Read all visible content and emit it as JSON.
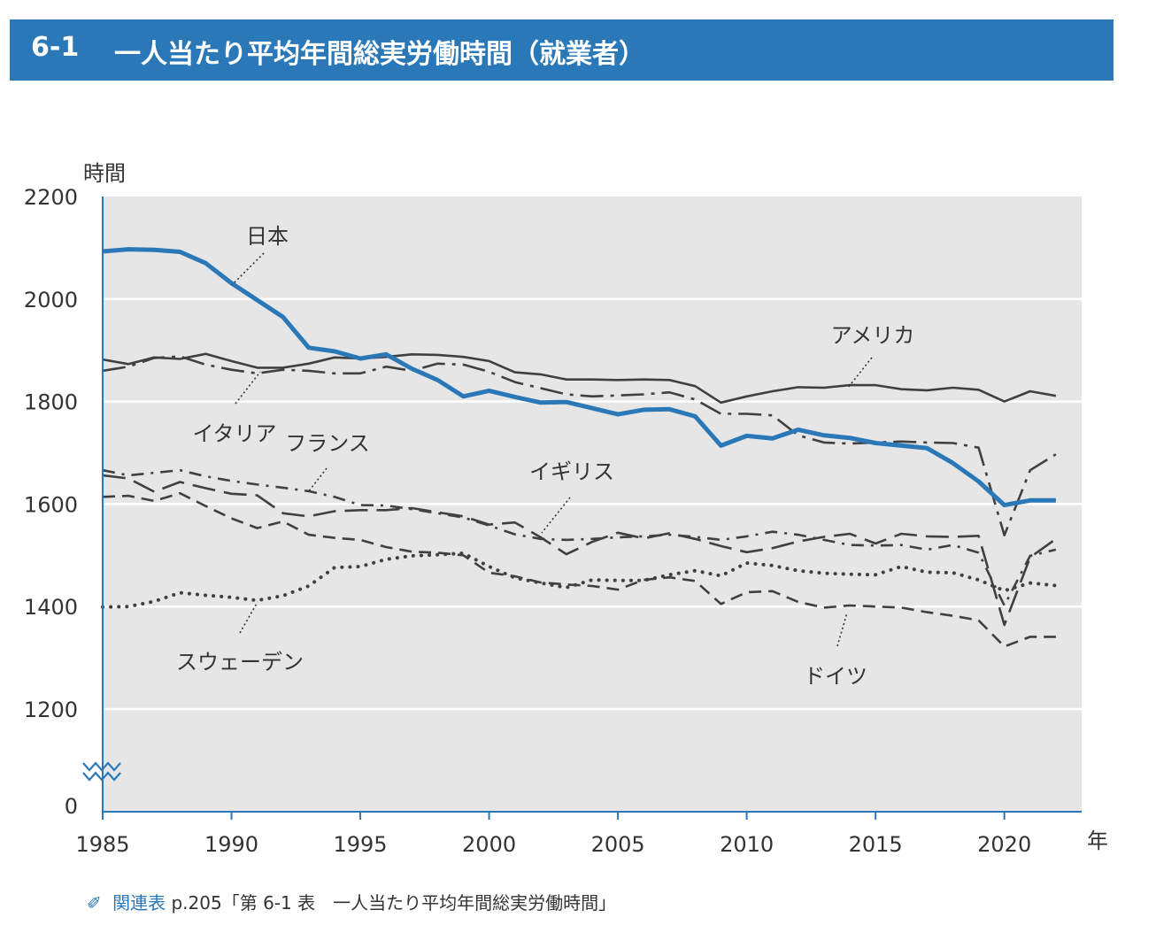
{
  "header": {
    "number": "6-1",
    "title": "一人当たり平均年間総実労働時間（就業者）"
  },
  "footer": {
    "icon": "book-icon",
    "link_label": "関連表",
    "reference": "p.205「第 6-1 表　一人当たり平均年間総実労働時間」"
  },
  "chart_data": {
    "type": "line",
    "ylabel": "時間",
    "xlabel": "年",
    "y_ticks": [
      "2200",
      "2000",
      "1800",
      "1600",
      "1400",
      "1200",
      "0"
    ],
    "x_ticks": [
      "1985",
      "1990",
      "1995",
      "2000",
      "2005",
      "2010",
      "2015",
      "2020"
    ],
    "ylim": [
      1200,
      2200
    ],
    "y_axis_break": true,
    "y_axis_origin_label": "0",
    "xlim": [
      1985,
      2023
    ],
    "grid": "horizontal",
    "background": "#e6e6e6",
    "x": [
      1985,
      1986,
      1987,
      1988,
      1989,
      1990,
      1991,
      1992,
      1993,
      1994,
      1995,
      1996,
      1997,
      1998,
      1999,
      2000,
      2001,
      2002,
      2003,
      2004,
      2005,
      2006,
      2007,
      2008,
      2009,
      2010,
      2011,
      2012,
      2013,
      2014,
      2015,
      2016,
      2017,
      2018,
      2019,
      2020,
      2021,
      2022
    ],
    "series": [
      {
        "name": "日本",
        "color": "#2b78b8",
        "style": "solid",
        "width": 5,
        "values": [
          2093,
          2097,
          2096,
          2092,
          2070,
          2031,
          1998,
          1965,
          1905,
          1898,
          1884,
          1892,
          1864,
          1842,
          1810,
          1821,
          1809,
          1798,
          1799,
          1787,
          1775,
          1784,
          1785,
          1771,
          1714,
          1733,
          1728,
          1745,
          1734,
          1729,
          1719,
          1714,
          1709,
          1680,
          1644,
          1598,
          1607,
          1607
        ]
      },
      {
        "name": "アメリカ",
        "color": "#404040",
        "style": "solid",
        "width": 2.6,
        "values": [
          1882,
          1873,
          1886,
          1883,
          1893,
          1879,
          1866,
          1866,
          1874,
          1886,
          1884,
          1887,
          1892,
          1891,
          1887,
          1879,
          1857,
          1853,
          1843,
          1843,
          1842,
          1843,
          1842,
          1830,
          1798,
          1810,
          1820,
          1828,
          1827,
          1832,
          1832,
          1824,
          1822,
          1827,
          1823,
          1800,
          1820,
          1811
        ]
      },
      {
        "name": "イタリア",
        "color": "#404040",
        "style": "dashdot",
        "width": 2.6,
        "values": [
          1860,
          1868,
          1885,
          1888,
          1872,
          1862,
          1855,
          1862,
          1860,
          1855,
          1855,
          1868,
          1860,
          1874,
          1872,
          1858,
          1838,
          1826,
          1814,
          1810,
          1812,
          1814,
          1818,
          1804,
          1776,
          1776,
          1773,
          1734,
          1720,
          1718,
          1720,
          1722,
          1720,
          1719,
          1710,
          1539,
          1666,
          1697
        ]
      },
      {
        "name": "フランス",
        "color": "#404040",
        "style": "dashdot2",
        "width": 2.6,
        "values": [
          1666,
          1656,
          1661,
          1666,
          1654,
          1645,
          1638,
          1632,
          1625,
          1614,
          1598,
          1597,
          1590,
          1582,
          1574,
          1558,
          1541,
          1532,
          1530,
          1532,
          1535,
          1537,
          1540,
          1536,
          1530,
          1537,
          1546,
          1540,
          1530,
          1520,
          1519,
          1520,
          1511,
          1520,
          1505,
          1402,
          1499,
          1511
        ]
      },
      {
        "name": "イギリス",
        "color": "#404040",
        "style": "longdash",
        "width": 2.6,
        "values": [
          1656,
          1650,
          1624,
          1643,
          1631,
          1620,
          1617,
          1582,
          1576,
          1586,
          1588,
          1588,
          1592,
          1584,
          1576,
          1560,
          1564,
          1535,
          1502,
          1526,
          1544,
          1533,
          1543,
          1532,
          1518,
          1506,
          1514,
          1527,
          1536,
          1542,
          1523,
          1542,
          1537,
          1536,
          1538,
          1364,
          1496,
          1532
        ]
      },
      {
        "name": "スウェーデン",
        "color": "#404040",
        "style": "dotted",
        "width": 4,
        "values": [
          1399,
          1400,
          1410,
          1427,
          1422,
          1418,
          1412,
          1421,
          1440,
          1476,
          1478,
          1492,
          1499,
          1501,
          1504,
          1478,
          1456,
          1446,
          1437,
          1452,
          1451,
          1451,
          1462,
          1470,
          1460,
          1485,
          1480,
          1470,
          1465,
          1463,
          1462,
          1478,
          1467,
          1466,
          1452,
          1431,
          1446,
          1441
        ]
      },
      {
        "name": "ドイツ",
        "color": "#404040",
        "style": "dashed",
        "width": 2.6,
        "values": [
          1614,
          1616,
          1606,
          1621,
          1596,
          1572,
          1553,
          1566,
          1540,
          1534,
          1530,
          1516,
          1507,
          1505,
          1500,
          1466,
          1459,
          1447,
          1443,
          1440,
          1433,
          1452,
          1457,
          1450,
          1405,
          1428,
          1430,
          1409,
          1398,
          1402,
          1400,
          1398,
          1389,
          1382,
          1373,
          1322,
          1341,
          1341
        ]
      }
    ]
  }
}
